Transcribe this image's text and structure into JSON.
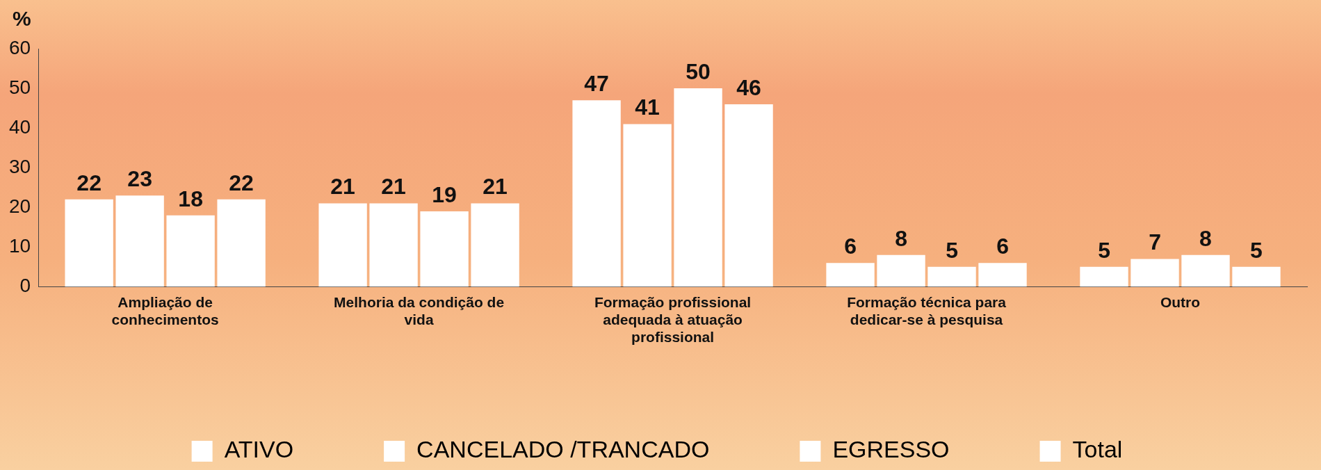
{
  "chart_data": {
    "type": "bar",
    "ylabel": "%",
    "categories": [
      "Ampliação de conhecimentos",
      "Melhoria da condição de vida",
      "Formação profissional adequada à atuação profissional",
      "Formação técnica para dedicar-se à pesquisa",
      "Outro"
    ],
    "series": [
      {
        "name": "ATIVO",
        "color": "#ffffff",
        "values": [
          22,
          21,
          47,
          6,
          5
        ]
      },
      {
        "name": "CANCELADO /TRANCADO",
        "color": "#ffffff",
        "values": [
          23,
          21,
          41,
          8,
          7
        ]
      },
      {
        "name": "EGRESSO",
        "color": "#ffffff",
        "values": [
          18,
          19,
          50,
          5,
          8
        ]
      },
      {
        "name": "Total",
        "color": "#ffffff",
        "values": [
          22,
          21,
          46,
          6,
          5
        ]
      }
    ],
    "ylim": [
      0,
      60
    ],
    "yticks": [
      0,
      10,
      20,
      30,
      40,
      50,
      60
    ],
    "data_labels": true,
    "legend": "bottom",
    "grid": false
  }
}
